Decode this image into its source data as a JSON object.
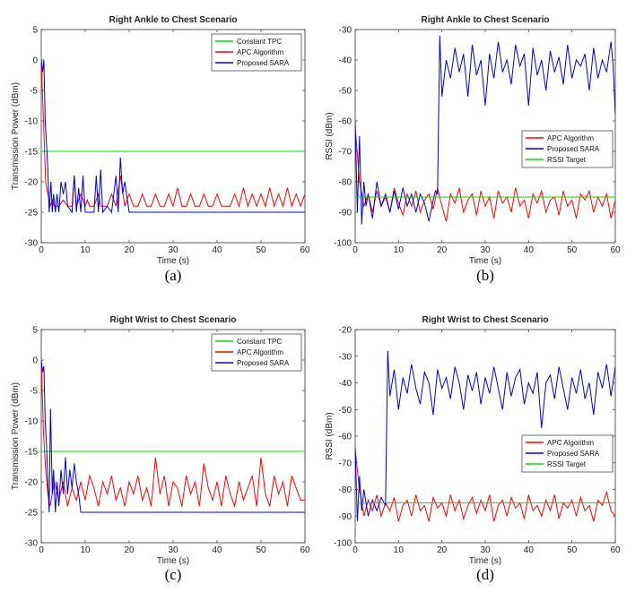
{
  "chart_data": [
    {
      "type": "line",
      "panel_label": "(a)",
      "title": "Right Ankle to Chest Scenario",
      "xlabel": "Time (s)",
      "ylabel": "Transmission Power (dBm)",
      "xlim": [
        0,
        60
      ],
      "ylim": [
        -30,
        5
      ],
      "xticks": [
        "0",
        "10",
        "20",
        "30",
        "40",
        "50",
        "60"
      ],
      "yticks": [
        "5",
        "0",
        "-5",
        "-10",
        "-15",
        "-20",
        "-25",
        "-30"
      ],
      "legend_position": "top-right",
      "series": [
        {
          "name": "Constant TPC",
          "color": "#00dd00",
          "x": [
            0,
            60
          ],
          "y": [
            -15,
            -15
          ]
        },
        {
          "name": "APC Algorithm",
          "color": "#ff0000",
          "x": [
            0,
            0.5,
            1,
            1.5,
            2,
            2.5,
            3,
            4,
            5,
            6,
            7,
            7.5,
            8,
            9,
            10,
            10.5,
            11,
            12,
            13,
            13.5,
            14,
            15,
            16,
            17,
            18,
            19,
            20,
            21,
            22,
            23,
            24,
            25,
            26,
            27,
            28,
            29,
            30,
            31,
            32,
            33,
            34,
            35,
            36,
            37,
            38,
            39,
            40,
            41,
            42,
            43,
            44,
            45,
            46,
            47,
            48,
            49,
            50,
            51,
            52,
            53,
            54,
            55,
            56,
            57,
            58,
            59,
            60
          ],
          "y": [
            0,
            -10,
            -20,
            -22,
            -24,
            -23,
            -24,
            -24,
            -23,
            -24,
            -24,
            -19,
            -24,
            -22,
            -24,
            -23,
            -24,
            -24,
            -22,
            -24,
            -24,
            -24,
            -22,
            -24,
            -19,
            -24,
            -22,
            -24,
            -24,
            -22,
            -24,
            -24,
            -22,
            -24,
            -24,
            -22,
            -24,
            -21,
            -24,
            -24,
            -22,
            -24,
            -24,
            -22,
            -24,
            -24,
            -22,
            -24,
            -24,
            -24,
            -22,
            -24,
            -21,
            -24,
            -22,
            -24,
            -22,
            -24,
            -21,
            -24,
            -22,
            -24,
            -21,
            -24,
            -22,
            -24,
            -22
          ]
        },
        {
          "name": "Proposed SARA",
          "color": "#0000dd",
          "x": [
            0,
            0.3,
            0.6,
            0.9,
            1.2,
            1.5,
            1.8,
            2.2,
            2.5,
            2.8,
            3.2,
            3.6,
            4,
            4.5,
            5,
            5.5,
            6,
            7,
            7.5,
            8,
            8.5,
            9,
            9.5,
            10,
            11,
            12,
            12.5,
            13,
            13.5,
            14,
            15,
            16,
            17,
            17.5,
            18,
            18.5,
            19,
            20,
            21,
            30,
            40,
            50,
            60
          ],
          "y": [
            0,
            -2,
            0,
            -10,
            -14,
            -18,
            -25,
            -20,
            -25,
            -22,
            -25,
            -22,
            -25,
            -20,
            -22,
            -20,
            -24,
            -25,
            -19,
            -25,
            -21,
            -25,
            -19,
            -25,
            -25,
            -25,
            -19,
            -25,
            -18,
            -25,
            -24,
            -25,
            -19,
            -25,
            -16,
            -22,
            -20,
            -25,
            -25,
            -25,
            -25,
            -25,
            -25
          ]
        }
      ]
    },
    {
      "type": "line",
      "panel_label": "(b)",
      "title": "Right Ankle to Chest Scenario",
      "xlabel": "Time (s)",
      "ylabel": "RSSI (dBm)",
      "xlim": [
        0,
        60
      ],
      "ylim": [
        -100,
        -30
      ],
      "xticks": [
        "0",
        "10",
        "20",
        "30",
        "40",
        "50",
        "60"
      ],
      "yticks": [
        "-30",
        "-40",
        "-50",
        "-60",
        "-70",
        "-80",
        "-90",
        "-100"
      ],
      "legend_position": "center-right",
      "series": [
        {
          "name": "APC Algorithm",
          "color": "#ff0000",
          "x": [
            0,
            1,
            2,
            3,
            4,
            5,
            6,
            7,
            8,
            9,
            10,
            11,
            12,
            13,
            14,
            15,
            16,
            17,
            18,
            19,
            20,
            21,
            22,
            23,
            24,
            25,
            26,
            27,
            28,
            29,
            30,
            31,
            32,
            33,
            34,
            35,
            36,
            37,
            38,
            39,
            40,
            41,
            42,
            43,
            44,
            45,
            46,
            47,
            48,
            49,
            50,
            51,
            52,
            53,
            54,
            55,
            56,
            57,
            58,
            59,
            60
          ],
          "y": [
            -62,
            -80,
            -88,
            -84,
            -90,
            -83,
            -88,
            -85,
            -90,
            -82,
            -87,
            -91,
            -84,
            -88,
            -83,
            -90,
            -86,
            -84,
            -89,
            -82,
            -88,
            -93,
            -84,
            -87,
            -82,
            -90,
            -86,
            -84,
            -91,
            -83,
            -88,
            -85,
            -92,
            -83,
            -87,
            -85,
            -90,
            -82,
            -88,
            -86,
            -92,
            -84,
            -87,
            -83,
            -90,
            -86,
            -85,
            -91,
            -83,
            -88,
            -86,
            -92,
            -84,
            -86,
            -83,
            -90,
            -85,
            -88,
            -84,
            -92,
            -86
          ]
        },
        {
          "name": "Proposed SARA",
          "color": "#0000dd",
          "x": [
            0,
            0.5,
            1,
            1.5,
            2,
            2.5,
            3,
            4,
            5,
            6,
            7,
            8,
            9,
            10,
            11,
            12,
            13,
            14,
            15,
            16,
            17,
            18,
            18.5,
            19,
            19.5,
            20,
            21,
            22,
            23,
            24,
            25,
            26,
            27,
            28,
            29,
            30,
            31,
            32,
            33,
            34,
            35,
            36,
            37,
            38,
            39,
            40,
            41,
            42,
            43,
            44,
            45,
            46,
            47,
            48,
            49,
            50,
            51,
            52,
            53,
            54,
            55,
            56,
            57,
            58,
            59,
            59.5,
            60
          ],
          "y": [
            -60,
            -90,
            -65,
            -94,
            -80,
            -88,
            -84,
            -92,
            -80,
            -88,
            -84,
            -90,
            -83,
            -89,
            -82,
            -88,
            -84,
            -90,
            -84,
            -87,
            -93,
            -86,
            -83,
            -84,
            -32,
            -52,
            -40,
            -46,
            -36,
            -44,
            -38,
            -52,
            -35,
            -45,
            -40,
            -55,
            -38,
            -46,
            -34,
            -44,
            -40,
            -48,
            -35,
            -42,
            -38,
            -55,
            -36,
            -45,
            -40,
            -50,
            -37,
            -44,
            -39,
            -48,
            -35,
            -46,
            -40,
            -42,
            -38,
            -50,
            -36,
            -46,
            -40,
            -44,
            -34,
            -42,
            -58
          ]
        },
        {
          "name": "RSSI Target",
          "color": "#00dd00",
          "x": [
            0,
            60
          ],
          "y": [
            -85,
            -85
          ]
        }
      ]
    },
    {
      "type": "line",
      "panel_label": "(c)",
      "title": "Right Wrist to Chest Scenario",
      "xlabel": "Time (s)",
      "ylabel": "Transmission Power (dBm)",
      "xlim": [
        0,
        60
      ],
      "ylim": [
        -30,
        5
      ],
      "xticks": [
        "0",
        "10",
        "20",
        "30",
        "40",
        "50",
        "60"
      ],
      "yticks": [
        "5",
        "0",
        "-5",
        "-10",
        "-15",
        "-20",
        "-25",
        "-30"
      ],
      "legend_position": "top-right",
      "series": [
        {
          "name": "Constant TPC",
          "color": "#00dd00",
          "x": [
            0,
            60
          ],
          "y": [
            -15,
            -15
          ]
        },
        {
          "name": "APC Algorithm",
          "color": "#ff0000",
          "x": [
            0,
            0.5,
            1,
            1.5,
            2,
            3,
            4,
            5,
            6,
            7,
            8,
            9,
            10,
            11,
            12,
            13,
            14,
            15,
            16,
            17,
            18,
            19,
            20,
            21,
            22,
            23,
            24,
            25,
            26,
            27,
            28,
            29,
            30,
            31,
            32,
            33,
            34,
            35,
            36,
            37,
            38,
            39,
            40,
            41,
            42,
            43,
            44,
            45,
            46,
            47,
            48,
            49,
            50,
            51,
            52,
            53,
            54,
            55,
            56,
            57,
            58,
            59,
            60
          ],
          "y": [
            0,
            -12,
            -18,
            -22,
            -24,
            -20,
            -23,
            -20,
            -24,
            -21,
            -23,
            -20,
            -23,
            -19,
            -21,
            -24,
            -20,
            -22,
            -19,
            -23,
            -21,
            -24,
            -20,
            -22,
            -19,
            -23,
            -21,
            -24,
            -16,
            -22,
            -19,
            -24,
            -20,
            -21,
            -24,
            -19,
            -22,
            -20,
            -24,
            -17,
            -21,
            -23,
            -20,
            -24,
            -19,
            -22,
            -24,
            -20,
            -23,
            -21,
            -19,
            -24,
            -16,
            -22,
            -24,
            -19,
            -22,
            -20,
            -24,
            -19,
            -21,
            -23,
            -23
          ]
        },
        {
          "name": "Proposed SARA",
          "color": "#0000dd",
          "x": [
            0,
            0.3,
            0.6,
            0.9,
            1.2,
            1.5,
            1.8,
            2.1,
            2.5,
            2.8,
            3.2,
            3.6,
            4,
            4.5,
            5,
            5.5,
            6,
            6.5,
            7,
            7.5,
            8,
            8.5,
            9,
            10,
            20,
            30,
            40,
            50,
            60
          ],
          "y": [
            0,
            -2,
            -1,
            -10,
            -14,
            -20,
            -25,
            -8,
            -22,
            -18,
            -25,
            -20,
            -24,
            -18,
            -22,
            -16,
            -22,
            -18,
            -21,
            -17,
            -20,
            -22,
            -25,
            -25,
            -25,
            -25,
            -25,
            -25,
            -25
          ]
        }
      ]
    },
    {
      "type": "line",
      "panel_label": "(d)",
      "title": "Right Wrist to Chest Scenario",
      "xlabel": "Time (s)",
      "ylabel": "RSSI (dBm)",
      "xlim": [
        0,
        60
      ],
      "ylim": [
        -100,
        -20
      ],
      "xticks": [
        "0",
        "10",
        "20",
        "30",
        "40",
        "50",
        "60"
      ],
      "yticks": [
        "-20",
        "-30",
        "-40",
        "-50",
        "-60",
        "-70",
        "-80",
        "-90",
        "-100"
      ],
      "legend_position": "bottom-right",
      "series": [
        {
          "name": "APC Algorithm",
          "color": "#ff0000",
          "x": [
            0,
            1,
            2,
            3,
            4,
            5,
            6,
            7,
            8,
            9,
            10,
            11,
            12,
            13,
            14,
            15,
            16,
            17,
            18,
            19,
            20,
            21,
            22,
            23,
            24,
            25,
            26,
            27,
            28,
            29,
            30,
            31,
            32,
            33,
            34,
            35,
            36,
            37,
            38,
            39,
            40,
            41,
            42,
            43,
            44,
            45,
            46,
            47,
            48,
            49,
            50,
            51,
            52,
            53,
            54,
            55,
            56,
            57,
            58,
            59,
            60
          ],
          "y": [
            -65,
            -80,
            -90,
            -84,
            -88,
            -82,
            -90,
            -85,
            -88,
            -83,
            -92,
            -86,
            -84,
            -90,
            -82,
            -88,
            -86,
            -92,
            -83,
            -87,
            -85,
            -90,
            -82,
            -88,
            -84,
            -91,
            -86,
            -83,
            -89,
            -84,
            -88,
            -82,
            -92,
            -86,
            -84,
            -90,
            -83,
            -87,
            -85,
            -91,
            -82,
            -88,
            -86,
            -90,
            -84,
            -88,
            -82,
            -91,
            -85,
            -87,
            -84,
            -90,
            -83,
            -88,
            -86,
            -92,
            -84,
            -86,
            -81,
            -88,
            -90
          ]
        },
        {
          "name": "Proposed SARA",
          "color": "#0000dd",
          "x": [
            0,
            0.5,
            1,
            1.5,
            2,
            3,
            4,
            5,
            6,
            7,
            7.5,
            8,
            9,
            10,
            11,
            12,
            13,
            14,
            15,
            16,
            17,
            18,
            19,
            20,
            21,
            22,
            23,
            24,
            25,
            26,
            27,
            28,
            29,
            30,
            31,
            32,
            33,
            34,
            35,
            36,
            37,
            38,
            39,
            40,
            41,
            42,
            43,
            44,
            45,
            46,
            47,
            48,
            49,
            50,
            51,
            52,
            53,
            54,
            55,
            56,
            57,
            58,
            59,
            60
          ],
          "y": [
            -64,
            -92,
            -75,
            -88,
            -80,
            -90,
            -84,
            -88,
            -83,
            -86,
            -28,
            -45,
            -35,
            -50,
            -38,
            -44,
            -33,
            -42,
            -48,
            -36,
            -40,
            -52,
            -35,
            -42,
            -38,
            -46,
            -34,
            -40,
            -50,
            -37,
            -43,
            -36,
            -48,
            -38,
            -44,
            -34,
            -42,
            -50,
            -36,
            -45,
            -38,
            -35,
            -48,
            -40,
            -44,
            -36,
            -57,
            -40,
            -37,
            -46,
            -34,
            -42,
            -50,
            -38,
            -44,
            -35,
            -46,
            -40,
            -52,
            -36,
            -42,
            -33,
            -45,
            -34
          ]
        },
        {
          "name": "RSSI Target",
          "color": "#00dd00",
          "x": [
            0,
            60
          ],
          "y": [
            -85,
            -85
          ]
        }
      ]
    }
  ]
}
